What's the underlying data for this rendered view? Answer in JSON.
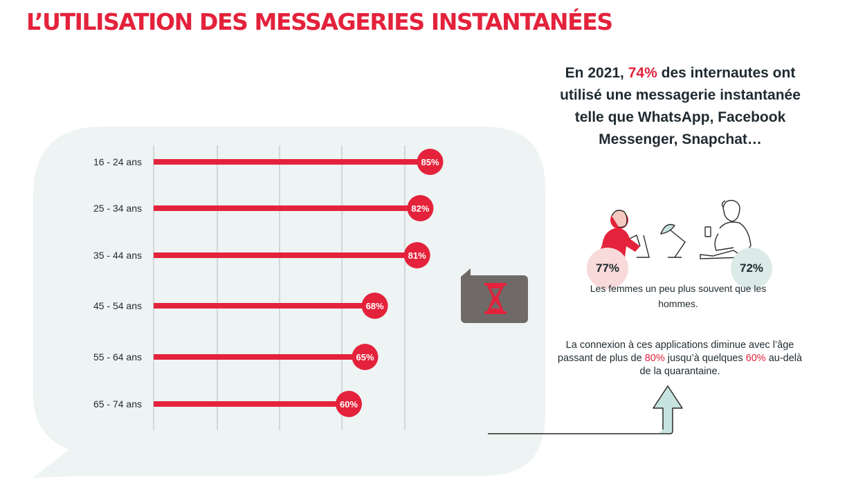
{
  "title": "L’UTILISATION DES MESSAGERIES INSTANTANÉES",
  "headline": {
    "prefix": "En 2021,",
    "highlight": "74%",
    "suffix": "des internautes ont utilisé une messagerie instantanée telle que WhatsApp, Facebook Messenger, Snapchat…"
  },
  "gender": {
    "women_value": "77%",
    "men_value": "72%",
    "note": "Les femmes un peu plus souvent que les hommes."
  },
  "age_note": {
    "part1": "La connexion à ces applications diminue avec l’âge passant de plus de",
    "value_high": "80%",
    "part2": "jusqu’à quelques",
    "value_low": "60%",
    "part3": "au-delà de la quarantaine."
  },
  "icons": [
    "hourglass-icon",
    "woman-phone-icon",
    "desk-lamp-icon",
    "man-phone-icon",
    "up-arrow-icon"
  ],
  "colors": {
    "accent": "#e4223b",
    "panel": "#edf4f3",
    "text": "#1f2a30",
    "women_badge": "#f8dada",
    "men_badge": "#dcebe8",
    "arrow": "#c7e3df",
    "hourglass_box": "#6f6a68"
  },
  "chart_data": {
    "type": "bar",
    "orientation": "horizontal",
    "categories": [
      "16 - 24 ans",
      "25 - 34 ans",
      "35 - 44 ans",
      "45 - 54 ans",
      "55 - 64 ans",
      "65 - 74 ans"
    ],
    "values": [
      85,
      82,
      81,
      68,
      65,
      60
    ],
    "value_labels": [
      "85%",
      "82%",
      "81%",
      "68%",
      "65%",
      "60%"
    ],
    "unit": "%",
    "title": "",
    "xlabel": "",
    "ylabel": "",
    "grid": true,
    "legend": "none"
  }
}
